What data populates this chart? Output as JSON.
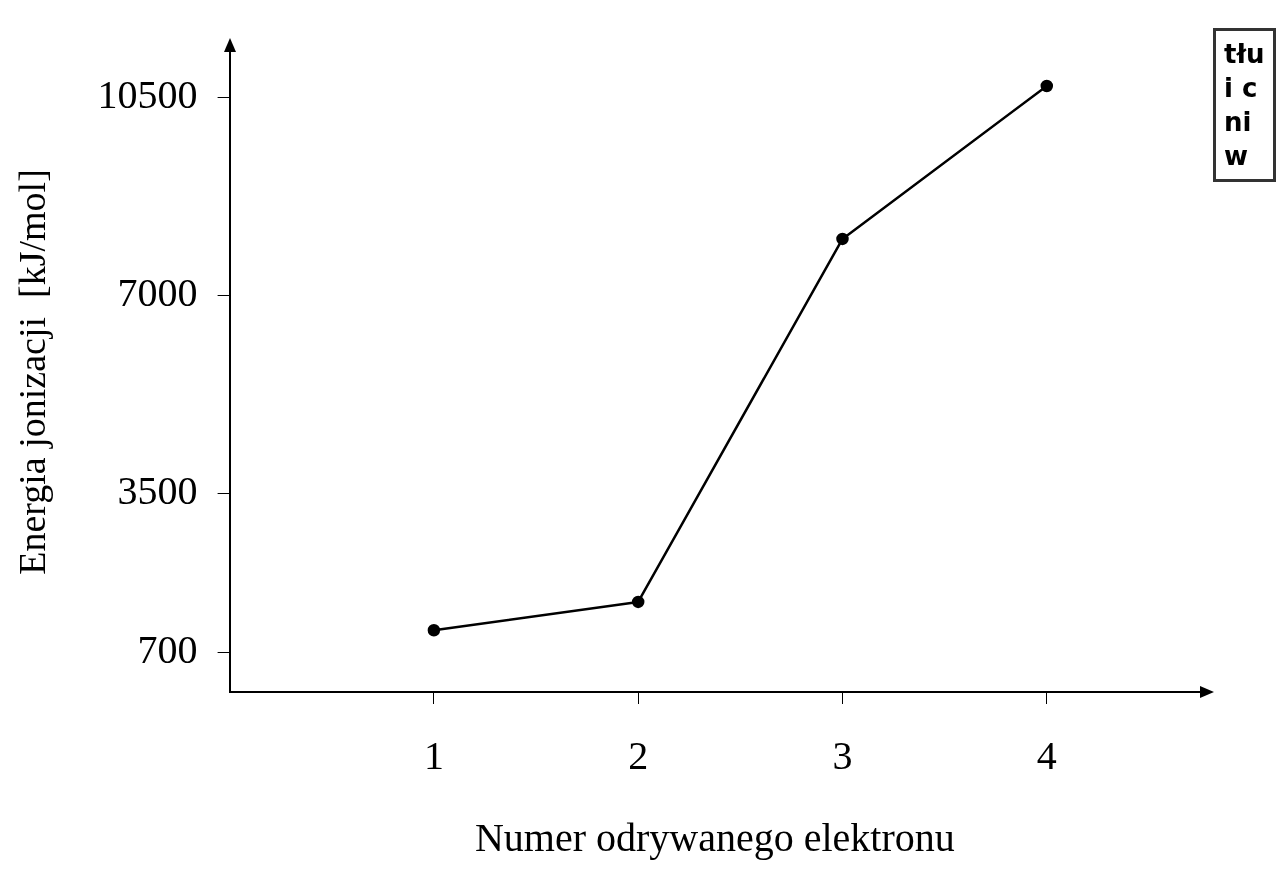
{
  "chart_data": {
    "type": "line",
    "xlabel": "Numer odrywanego elektronu",
    "ylabel": "Energia jonizacji  [kJ/mol]",
    "x": [
      1,
      2,
      3,
      4
    ],
    "values": [
      1090,
      1590,
      8000,
      10700
    ],
    "color": "#000000",
    "xlim": [
      0,
      4.75
    ],
    "xticks": [
      1,
      2,
      3,
      4
    ],
    "ylim": [
      0,
      11300
    ],
    "yticks": [
      700,
      3500,
      7000,
      10500
    ],
    "grid": false,
    "legend": false,
    "marker": "circle",
    "line_style": "solid",
    "annotations": [
      "tłu",
      "i c",
      "ni",
      "w"
    ]
  }
}
